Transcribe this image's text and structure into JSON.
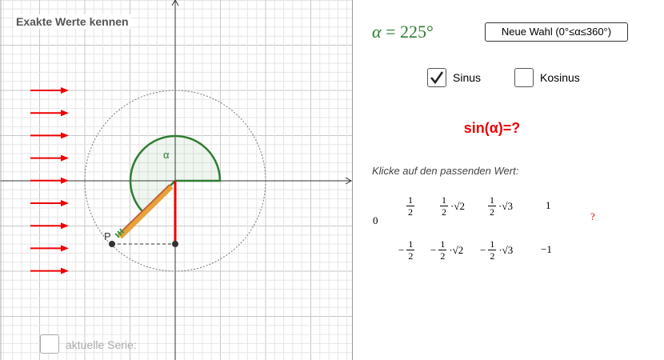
{
  "panel_title": "Exakte Werte kennen",
  "angle_label": "α",
  "point_label": "P",
  "series_checkbox": "aktuelle Serie:",
  "alpha_symbol": "α",
  "equals": "=",
  "alpha_value": "225°",
  "button": "Neue Wahl (0°≤α≤360°)",
  "checkboxes": [
    {
      "label": "Sinus",
      "checked": true
    },
    {
      "label": "Kosinus",
      "checked": false
    }
  ],
  "question": "sin(α)=?",
  "instruction": "Klicke auf den passenden Wert:",
  "answers": [
    {
      "text": "0"
    },
    {
      "num": "1",
      "den": "2"
    },
    {
      "num": "1",
      "den": "2",
      "suffix": "·√2"
    },
    {
      "num": "1",
      "den": "2",
      "suffix": "·√3"
    },
    {
      "text": "1"
    },
    {
      "sign": "−",
      "num": "1",
      "den": "2"
    },
    {
      "sign": "−",
      "num": "1",
      "den": "2",
      "suffix": "·√2"
    },
    {
      "sign": "−",
      "num": "1",
      "den": "2",
      "suffix": "·√3"
    },
    {
      "text": "−1"
    }
  ],
  "feedback": "?"
}
